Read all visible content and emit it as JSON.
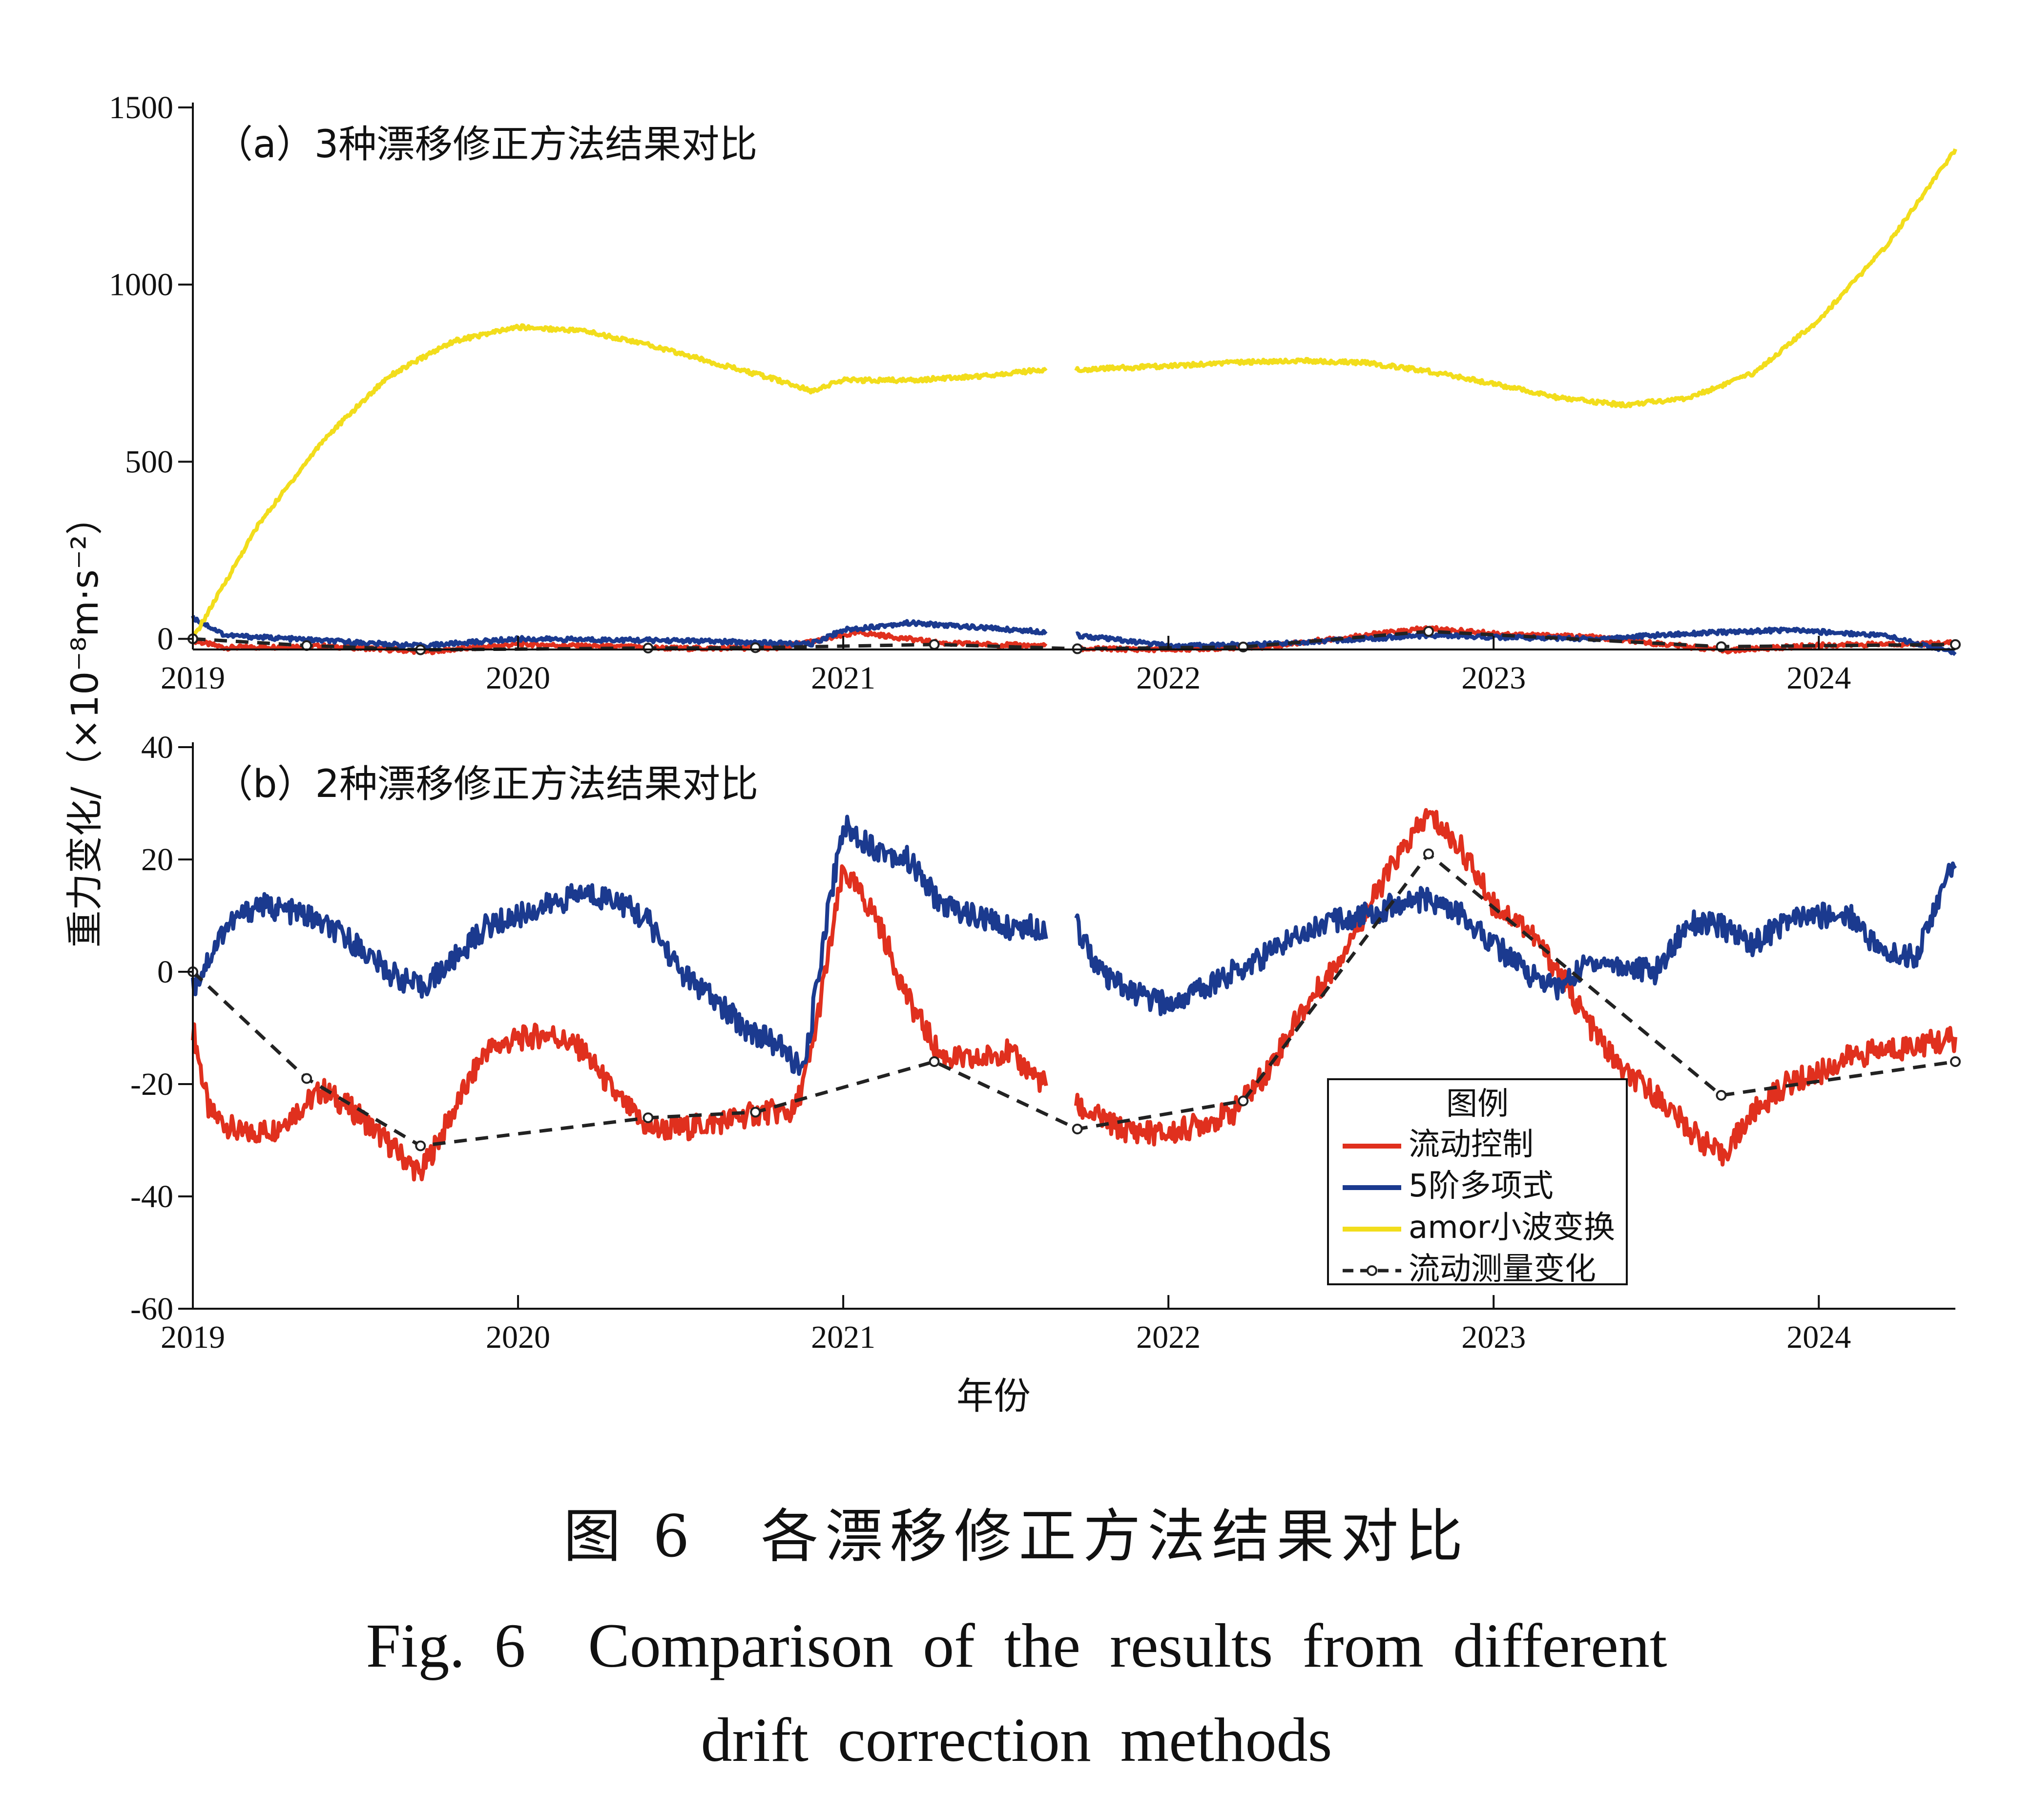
{
  "figure": {
    "caption_cn": "图 6　各漂移修正方法结果对比",
    "caption_en_line1": "Fig. 6　Comparison of the results from different",
    "caption_en_line2": "drift correction methods"
  },
  "chart_data": [
    {
      "type": "line",
      "title": "（a）3种漂移修正方法结果对比",
      "xlabel": "",
      "ylabel": "重力变化/（×10⁻⁸m·s⁻²）",
      "xlim": [
        2019,
        2024.42
      ],
      "ylim": [
        -30,
        1500
      ],
      "yticks": [
        0,
        500,
        1000,
        1500
      ],
      "xticks": [
        "2019",
        "2020",
        "2021",
        "2022",
        "2023",
        "2024"
      ],
      "grid": false,
      "series": [
        {
          "name": "流动控制",
          "color": "#e0301e",
          "x": [
            2019.0,
            2019.1,
            2019.4,
            2019.72,
            2020.0,
            2020.5,
            2020.8,
            2020.92,
            2021.05,
            2021.3,
            2021.62,
            2021.72,
            2022.0,
            2022.3,
            2022.6,
            2022.8,
            2023.0,
            2023.3,
            2023.6,
            2023.72,
            2024.0,
            2024.42
          ],
          "y": [
            -5,
            -25,
            -20,
            -36,
            -15,
            -27,
            -25,
            -5,
            18,
            -12,
            -20,
            -28,
            -30,
            -22,
            10,
            30,
            15,
            5,
            -22,
            -33,
            -18,
            -12
          ]
        },
        {
          "name": "5阶多项式",
          "color": "#1b3a8f",
          "x": [
            2019.0,
            2019.1,
            2019.4,
            2019.7,
            2020.0,
            2020.5,
            2020.9,
            2021.0,
            2021.2,
            2021.62,
            2021.72,
            2022.0,
            2022.3,
            2022.6,
            2022.8,
            2023.0,
            2023.3,
            2023.6,
            2023.9,
            2024.2,
            2024.42
          ],
          "y": [
            60,
            10,
            -5,
            -20,
            0,
            -5,
            -15,
            25,
            45,
            20,
            10,
            -20,
            -15,
            0,
            10,
            5,
            0,
            15,
            25,
            10,
            -40
          ]
        },
        {
          "name": "amor小波变换",
          "color": "#f2dd1c",
          "x": [
            2019.0,
            2019.2,
            2019.4,
            2019.6,
            2019.8,
            2020.0,
            2020.2,
            2020.4,
            2020.6,
            2020.8,
            2020.9,
            2021.0,
            2021.2,
            2021.4,
            2021.62,
            2021.72,
            2022.0,
            2022.2,
            2022.4,
            2022.6,
            2022.8,
            2023.0,
            2023.2,
            2023.4,
            2023.6,
            2023.8,
            2024.0,
            2024.2,
            2024.42
          ],
          "y": [
            0,
            320,
            560,
            740,
            840,
            880,
            870,
            830,
            780,
            730,
            700,
            730,
            730,
            740,
            760,
            760,
            770,
            780,
            785,
            780,
            755,
            720,
            680,
            660,
            680,
            750,
            900,
            1100,
            1380
          ]
        },
        {
          "name": "流动测量变化",
          "color": "#222222",
          "dash": true,
          "x": [
            2019.0,
            2019.35,
            2019.7,
            2020.4,
            2020.73,
            2021.28,
            2021.72,
            2022.23,
            2022.8,
            2023.7,
            2024.42
          ],
          "y": [
            0,
            -19,
            -31,
            -26,
            -25,
            -16,
            -28,
            -23,
            21,
            -22,
            -16
          ]
        }
      ]
    },
    {
      "type": "line",
      "title": "（b）2种漂移修正方法结果对比",
      "xlabel": "年份",
      "ylabel": "重力变化/（×10⁻⁸m·s⁻²）",
      "xlim": [
        2019,
        2024.42
      ],
      "ylim": [
        -60,
        40
      ],
      "yticks": [
        -60,
        -40,
        -20,
        0,
        20,
        40
      ],
      "xticks": [
        "2019",
        "2020",
        "2021",
        "2022",
        "2023",
        "2024"
      ],
      "grid": false,
      "legend": {
        "title": "图例",
        "position": "lower-right"
      },
      "series": [
        {
          "name": "流动控制",
          "color": "#e0301e",
          "x": [
            2019.0,
            2019.05,
            2019.15,
            2019.25,
            2019.4,
            2019.5,
            2019.7,
            2019.8,
            2019.9,
            2020.0,
            2020.1,
            2020.2,
            2020.3,
            2020.4,
            2020.5,
            2020.6,
            2020.75,
            2020.85,
            2020.9,
            2021.0,
            2021.1,
            2021.2,
            2021.3,
            2021.4,
            2021.5,
            2021.62,
            2021.72,
            2021.85,
            2022.0,
            2022.1,
            2022.2,
            2022.3,
            2022.4,
            2022.5,
            2022.6,
            2022.7,
            2022.8,
            2022.9,
            2023.0,
            2023.1,
            2023.2,
            2023.3,
            2023.4,
            2023.5,
            2023.6,
            2023.7,
            2023.8,
            2023.9,
            2024.0,
            2024.1,
            2024.2,
            2024.3,
            2024.42
          ],
          "y": [
            -10,
            -25,
            -29,
            -28,
            -21,
            -25,
            -36,
            -25,
            -14,
            -12,
            -11,
            -14,
            -22,
            -28,
            -28,
            -27,
            -25,
            -25,
            -15,
            18,
            10,
            -5,
            -15,
            -16,
            -14,
            -20,
            -24,
            -28,
            -29,
            -27,
            -25,
            -18,
            -8,
            0,
            10,
            20,
            28,
            22,
            12,
            8,
            0,
            -10,
            -18,
            -22,
            -28,
            -33,
            -25,
            -20,
            -18,
            -15,
            -14,
            -13,
            -12
          ]
        },
        {
          "name": "5阶多项式",
          "color": "#1b3a8f",
          "x": [
            2019.0,
            2019.1,
            2019.2,
            2019.35,
            2019.5,
            2019.6,
            2019.7,
            2019.8,
            2019.9,
            2020.0,
            2020.1,
            2020.2,
            2020.3,
            2020.4,
            2020.5,
            2020.6,
            2020.7,
            2020.8,
            2020.88,
            2020.95,
            2021.0,
            2021.1,
            2021.2,
            2021.3,
            2021.4,
            2021.5,
            2021.62,
            2021.72,
            2021.8,
            2021.9,
            2022.0,
            2022.1,
            2022.2,
            2022.3,
            2022.4,
            2022.5,
            2022.6,
            2022.7,
            2022.8,
            2022.9,
            2023.0,
            2023.1,
            2023.2,
            2023.3,
            2023.4,
            2023.5,
            2023.6,
            2023.7,
            2023.8,
            2023.9,
            2024.0,
            2024.1,
            2024.2,
            2024.3,
            2024.42
          ],
          "y": [
            -3,
            8,
            12,
            10,
            5,
            0,
            -3,
            2,
            8,
            10,
            12,
            14,
            13,
            9,
            0,
            -5,
            -10,
            -13,
            -18,
            10,
            26,
            22,
            20,
            12,
            10,
            8,
            8,
            8,
            -1,
            -4,
            -6,
            -3,
            0,
            3,
            7,
            9,
            10,
            12,
            13,
            10,
            5,
            0,
            -3,
            2,
            1,
            0,
            9,
            8,
            5,
            9,
            10,
            10,
            3,
            3,
            20
          ]
        },
        {
          "name": "流动测量变化",
          "color": "#222222",
          "dash": true,
          "x": [
            2019.0,
            2019.35,
            2019.7,
            2020.4,
            2020.73,
            2021.28,
            2021.72,
            2022.23,
            2022.8,
            2023.7,
            2024.42
          ],
          "y": [
            0,
            -19,
            -31,
            -26,
            -25,
            -16,
            -28,
            -23,
            21,
            -22,
            -16
          ]
        }
      ]
    }
  ],
  "legend": {
    "title": "图例",
    "items": [
      {
        "label": "流动控制",
        "color": "#e0301e",
        "style": "solid"
      },
      {
        "label": "5阶多项式",
        "color": "#1b3a8f",
        "style": "solid"
      },
      {
        "label": "amor小波变换",
        "color": "#f2dd1c",
        "style": "solid"
      },
      {
        "label": "流动测量变化",
        "color": "#222222",
        "style": "dashed-marker"
      }
    ]
  }
}
